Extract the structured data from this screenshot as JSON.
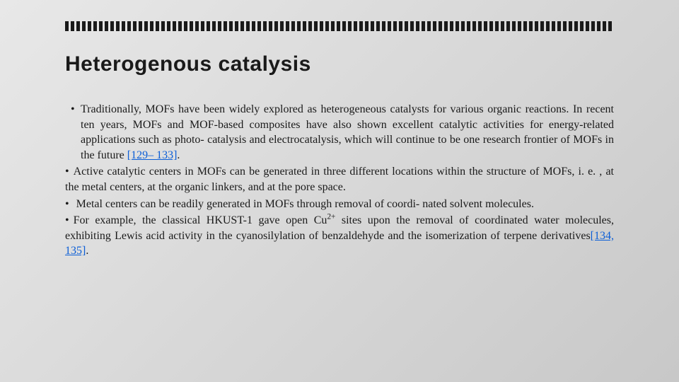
{
  "slide": {
    "title": "Heterogenous catalysis",
    "dash_count": 98,
    "bullets": [
      {
        "indent": true,
        "text_before": "Traditionally, MOFs have been widely explored as heterogeneous catalysts for various organic reactions. In recent ten years,  MOFs and MOF-based composites have also shown excellent catalytic activities for energy-related applications such as photo-  catalysis and electrocatalysis, which will continue to be one  research frontier of MOFs in the future ",
        "ref": "[129– 133]",
        "text_after": "."
      },
      {
        "indent": false,
        "text_before": "Active catalytic centers in MOFs can be generated in three different locations within the structure of MOFs, i. e. , at the metal centers, at the organic linkers, and at the pore space.",
        "ref": "",
        "text_after": ""
      },
      {
        "indent": false,
        "text_before": " Metal centers  can be readily generated in MOFs through removal of coordi-  nated solvent molecules.",
        "ref": "",
        "text_after": ""
      },
      {
        "indent": false,
        "text_before": "For  example,  the  classical  HKUST-1   gave  open  Cu",
        "sup": "2+",
        "text_mid": " sites  upon  the  removal  of coordinated  water  molecules,  exhibiting  Lewis  acid  activity  in  the cyanosilylation  of  benzaldehyde  and  the  isomerization  of  terpene derivatives",
        "ref": "[134, 135]",
        "text_after": "."
      }
    ]
  },
  "colors": {
    "text": "#1a1a1a",
    "link": "#0b5ed7",
    "bg_light": "#e8e8e8",
    "bg_dark": "#c8c8c8"
  },
  "typography": {
    "title_font": "Arial",
    "title_size_pt": 22,
    "title_weight": 700,
    "body_font": "Palatino Linotype",
    "body_size_pt": 12
  }
}
